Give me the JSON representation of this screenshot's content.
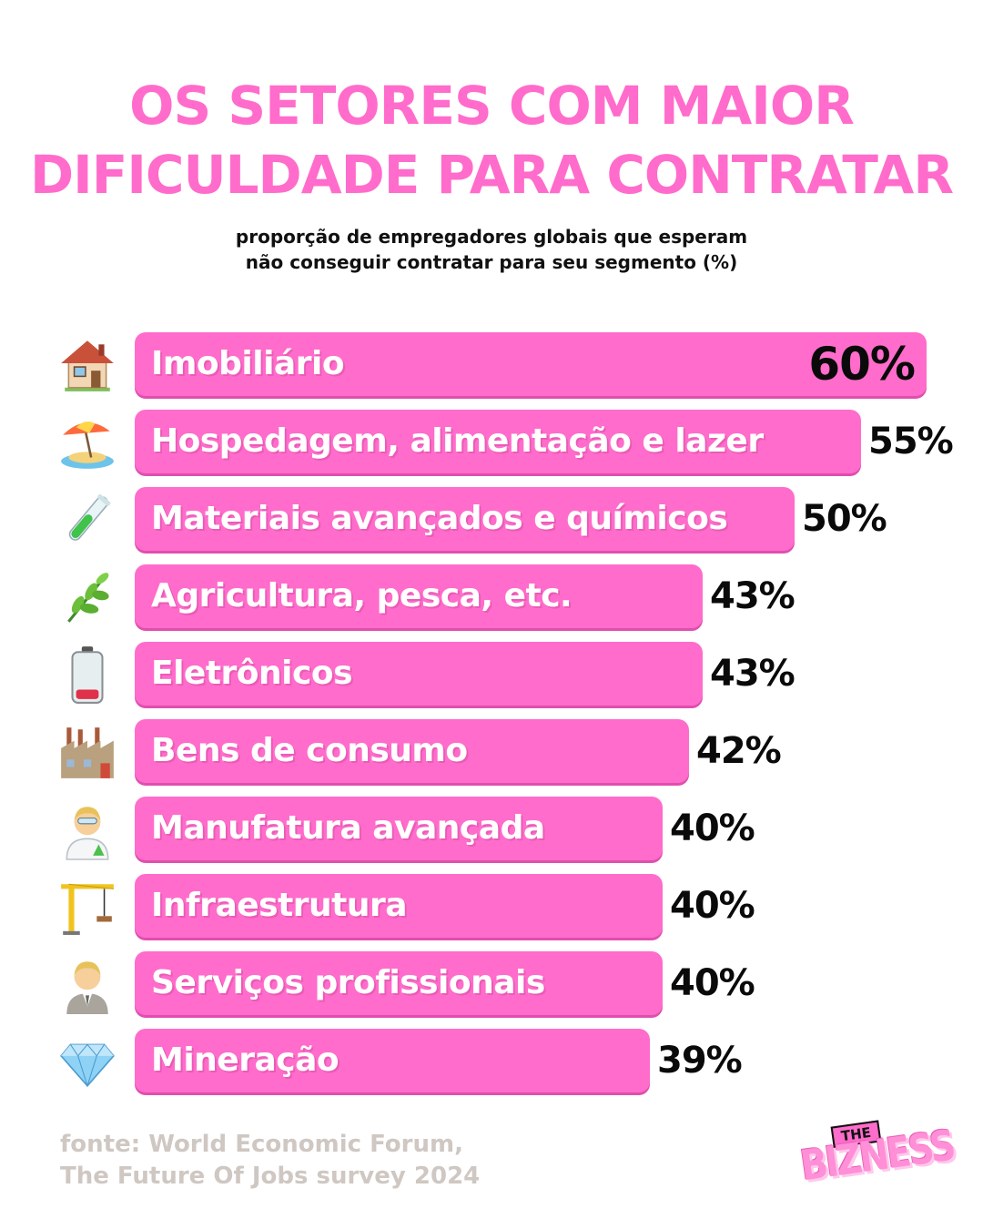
{
  "title_lines": [
    "OS SETORES COM MAIOR",
    "DIFICULDADE PARA CONTRATAR"
  ],
  "subtitle_lines": [
    "proporção de empregadores globais que esperam",
    "não conseguir contratar para seu segmento (%)"
  ],
  "source_lines": [
    "fonte: World Economic Forum,",
    "The Future Of Jobs survey 2024"
  ],
  "logo": {
    "top": "THE",
    "main": "BIZNESS"
  },
  "colors": {
    "bar": "#ff6ccb",
    "title": "#ff6ccb",
    "value": "#0a0a0a",
    "source": "#cfc7c2"
  },
  "chart_data": {
    "type": "bar",
    "orientation": "horizontal",
    "title": "OS SETORES COM MAIOR DIFICULDADE PARA CONTRATAR",
    "subtitle": "proporção de empregadores globais que esperam não conseguir contratar para seu segmento (%)",
    "categories": [
      "Imobiliário",
      "Hospedagem, alimentação e lazer",
      "Materiais avançados e químicos",
      "Agricultura, pesca, etc.",
      "Eletrônicos",
      "Bens de consumo",
      "Manufatura avançada",
      "Infraestrutura",
      "Serviços profissionais",
      "Mineração"
    ],
    "values": [
      60,
      55,
      50,
      43,
      43,
      42,
      40,
      40,
      40,
      39
    ],
    "value_labels": [
      "60%",
      "55%",
      "50%",
      "43%",
      "43%",
      "42%",
      "40%",
      "40%",
      "40%",
      "39%"
    ],
    "icons": [
      "house-icon",
      "beach-umbrella-icon",
      "test-tube-icon",
      "herb-icon",
      "low-battery-icon",
      "factory-icon",
      "scientist-icon",
      "crane-icon",
      "office-worker-icon",
      "gem-icon"
    ],
    "xlim": [
      0,
      60
    ],
    "grid": false,
    "legend": "none"
  }
}
